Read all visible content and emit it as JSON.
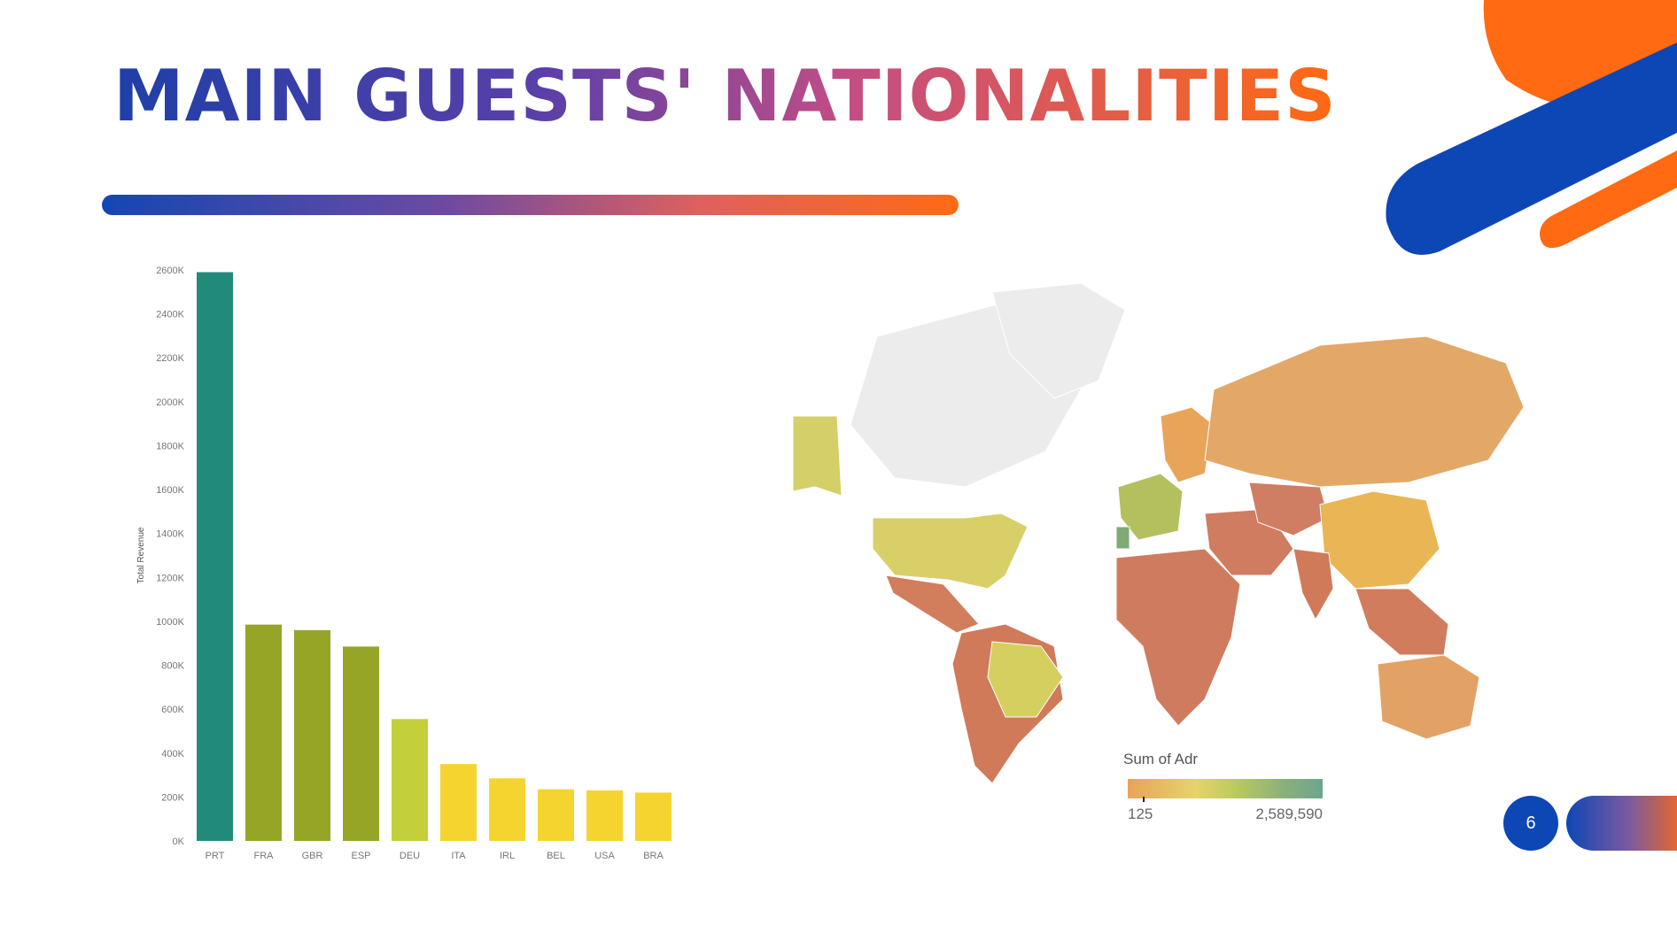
{
  "slide": {
    "title": "MAIN GUESTS' NATIONALITIES",
    "page_number": "6"
  },
  "colors": {
    "blue": "#0c47b5",
    "orange": "#ff6a12",
    "teal": "#228a7a",
    "olive": "#97a527",
    "lime": "#c3cf3b",
    "yellow": "#f6d42f"
  },
  "chart_data": [
    {
      "type": "bar",
      "ylabel": "Total Revenue",
      "xlabel": "",
      "ylim": [
        0,
        2600
      ],
      "y_ticks": [
        "0K",
        "200K",
        "400K",
        "600K",
        "800K",
        "1000K",
        "1200K",
        "1400K",
        "1600K",
        "1800K",
        "2000K",
        "2200K",
        "2400K",
        "2600K"
      ],
      "categories": [
        "PRT",
        "FRA",
        "GBR",
        "ESP",
        "DEU",
        "ITA",
        "IRL",
        "BEL",
        "USA",
        "BRA"
      ],
      "values": [
        2590,
        985,
        960,
        885,
        555,
        350,
        285,
        235,
        230,
        220
      ],
      "bar_colors": [
        "#228a7a",
        "#97a527",
        "#97a527",
        "#97a527",
        "#c3cf3b",
        "#f6d42f",
        "#f6d42f",
        "#f6d42f",
        "#f6d42f",
        "#f6d42f"
      ]
    },
    {
      "type": "heatmap",
      "subtype": "choropleth-world-map",
      "legend_title": "Sum of Adr",
      "color_range": [
        "125",
        "2,589,590"
      ],
      "palette": [
        "#e8a35a",
        "#e5d46a",
        "#bcca5e",
        "#6ea48e"
      ],
      "region_fills": {
        "north-america-north": "#ececec",
        "alaska": "#d5cf6a",
        "greenland": "#ececec",
        "usa": "#d8cf68",
        "mexico-central": "#d27d5c",
        "south-america": "#d07a5a",
        "brazil": "#d5cf60",
        "europe-west": "#b4bf5d",
        "portugal": "#7faa75",
        "europe-north": "#e8a55a",
        "russia": "#e3a867",
        "africa": "#cf7b5f",
        "middle-east": "#d07c60",
        "china": "#eab554",
        "central-asia": "#cf7e63",
        "india": "#d07a5a",
        "southeast-asia": "#d27c5e",
        "australia": "#e2a265"
      }
    }
  ]
}
